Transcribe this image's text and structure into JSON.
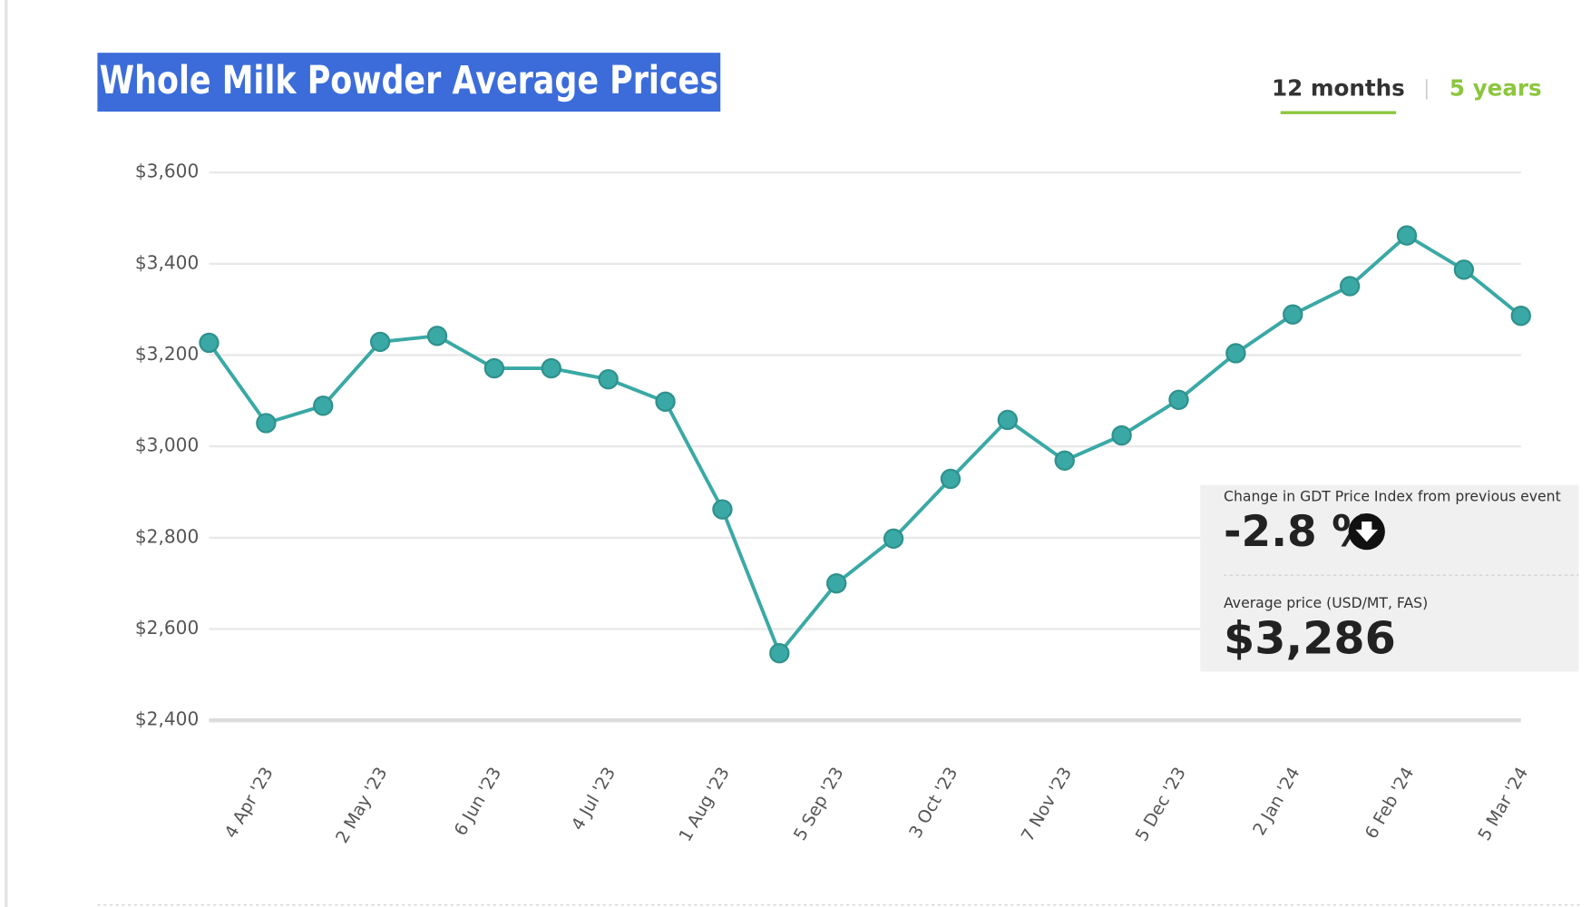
{
  "chart_data": {
    "type": "line",
    "title": "Whole Milk Powder Average Prices",
    "categories": [
      null,
      "4 Apr '23",
      null,
      "2 May '23",
      null,
      "6 Jun '23",
      null,
      "4 Jul '23",
      null,
      "1 Aug '23",
      null,
      "5 Sep '23",
      null,
      "3 Oct '23",
      null,
      "7 Nov '23",
      null,
      "5 Dec '23",
      null,
      "2 Jan '24",
      null,
      "6 Feb '24",
      null,
      "5 Mar '24"
    ],
    "series": [
      {
        "color": "#3aa9a5",
        "values": [
          3227,
          3051,
          3089,
          3229,
          3242,
          3171,
          3171,
          3147,
          3098,
          2862,
          2547,
          2700,
          2798,
          2929,
          3058,
          2969,
          3024,
          3102,
          3204,
          3289,
          3351,
          3462,
          3387,
          3286
        ]
      }
    ],
    "ylim": [
      2400,
      3600
    ],
    "yticks": [
      {
        "value": 2400,
        "label": "$2,400"
      },
      {
        "value": 2600,
        "label": "$2,600"
      },
      {
        "value": 2800,
        "label": "$2,800"
      },
      {
        "value": 3000,
        "label": "$3,000"
      },
      {
        "value": 3200,
        "label": "$3,200"
      },
      {
        "value": 3400,
        "label": "$3,400"
      },
      {
        "value": 3600,
        "label": "$3,600"
      }
    ],
    "grid": true
  },
  "tabs": [
    "12 months",
    "5 years"
  ],
  "info_panel": {
    "change_label": "Change in GDT Price Index from previous event",
    "change_value": "-2.8 %",
    "price_label": "Average price (USD/MT, FAS)",
    "price_value": "$3,286"
  }
}
